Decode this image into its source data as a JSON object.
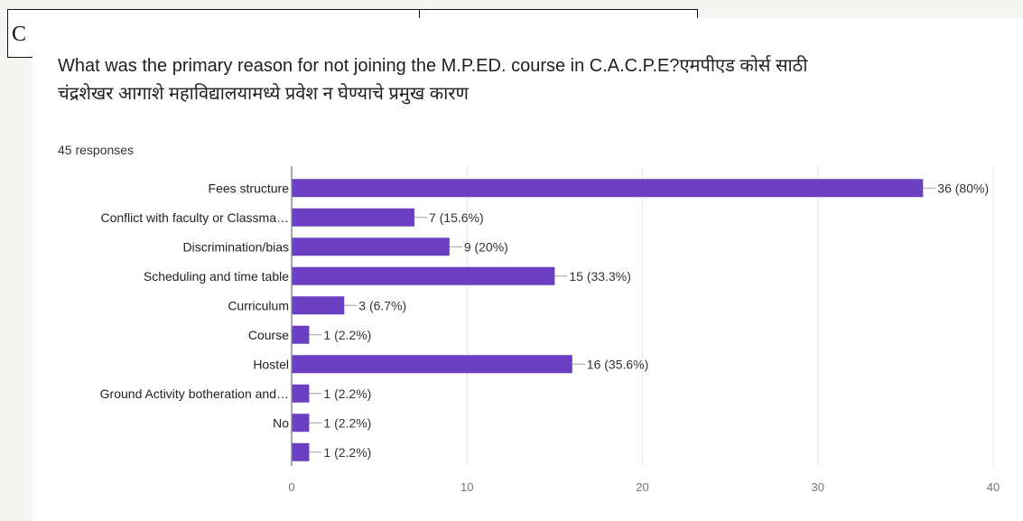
{
  "document": {
    "cell_text": "C"
  },
  "form": {
    "question_line1": "What was the primary reason for not joining the M.P.ED. course in C.A.C.P.E?एमपीएड कोर्स साठी",
    "question_line2": "चंद्रशेखर आगाशे महाविद्यालयामध्ये प्रवेश न घेण्याचे प्रमुख कारण",
    "responses": "45 responses"
  },
  "colors": {
    "bar": "#6a3fc2",
    "axis": "#8a8a8a",
    "connector": "#9e9e9e"
  },
  "chart_data": {
    "type": "bar",
    "orientation": "horizontal",
    "categories": [
      "Fees structure",
      "Conflict with faculty or Classma…",
      "Discrimination/bias",
      "Scheduling and time table",
      "Curriculum",
      "Course",
      "Hostel",
      "Ground Activity botheration and…",
      "No",
      ""
    ],
    "values": [
      36,
      7,
      9,
      15,
      3,
      1,
      16,
      1,
      1,
      1
    ],
    "value_labels": [
      "36 (80%)",
      "7 (15.6%)",
      "9 (20%)",
      "15 (33.3%)",
      "3 (6.7%)",
      "1 (2.2%)",
      "16 (35.6%)",
      "1 (2.2%)",
      "1 (2.2%)",
      "1 (2.2%)"
    ],
    "xlim": [
      0,
      40
    ],
    "xticks": [
      0,
      10,
      20,
      30,
      40
    ],
    "grid": true,
    "legend": "none"
  }
}
